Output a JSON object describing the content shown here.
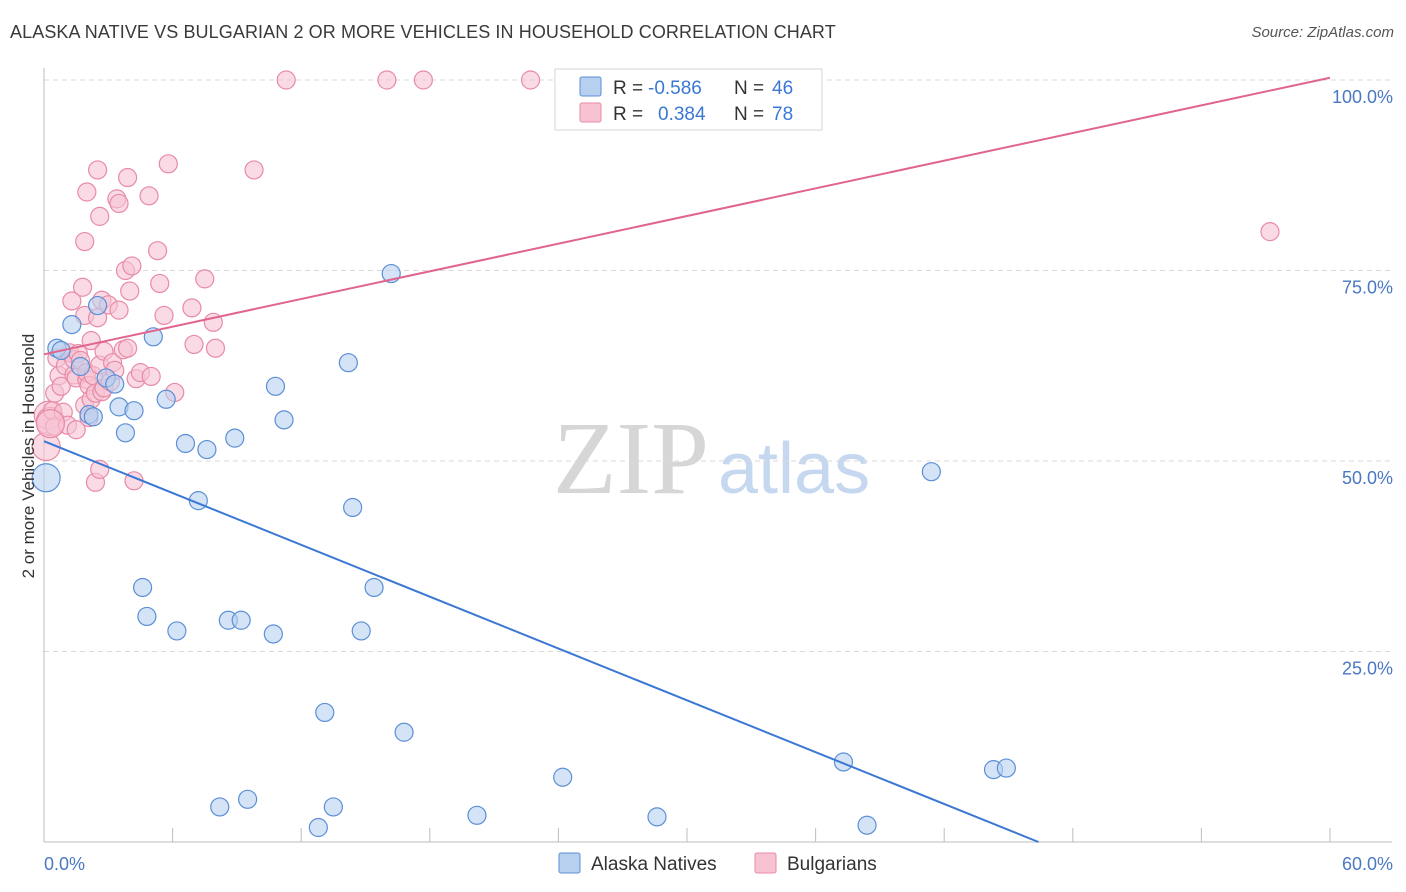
{
  "title": "ALASKA NATIVE VS BULGARIAN 2 OR MORE VEHICLES IN HOUSEHOLD CORRELATION CHART",
  "source": "Source: ZipAtlas.com",
  "watermark": {
    "zip": "ZIP",
    "atlas": "atlas"
  },
  "colors": {
    "blue_fill": "#b8d0f0",
    "blue_stroke": "#5b8fd6",
    "blue_line": "#3a78d4",
    "pink_fill": "#f7c3d3",
    "pink_stroke": "#e88aa6",
    "pink_line": "#e0648e",
    "tick_text": "#4a78c2",
    "grid": "#d8d8d8"
  },
  "legend": {
    "r_label": "R =",
    "n_label": "N =",
    "rows": [
      {
        "series": "Alaska Natives",
        "r": "-0.586",
        "n": "46"
      },
      {
        "series": "Bulgarians",
        "r": "0.384",
        "n": "78"
      }
    ]
  },
  "chart_data": {
    "type": "scatter",
    "title": "ALASKA NATIVE VS BULGARIAN 2 OR MORE VEHICLES IN HOUSEHOLD CORRELATION CHART",
    "xlabel": "",
    "ylabel": "2 or more Vehicles in Household",
    "xlim": [
      0,
      60
    ],
    "ylim": [
      0,
      100
    ],
    "x_tick_labels": {
      "min": "0.0%",
      "max": "60.0%"
    },
    "y_tick_labels": [
      "25.0%",
      "50.0%",
      "75.0%",
      "100.0%"
    ],
    "y_ticks": [
      25,
      50,
      75,
      100
    ],
    "series": [
      {
        "name": "Alaska Natives",
        "color": "blue",
        "points": [
          [
            0.1,
            47.8
          ],
          [
            0.6,
            64.8
          ],
          [
            0.8,
            64.5
          ],
          [
            1.3,
            67.9
          ],
          [
            1.7,
            62.4
          ],
          [
            2.1,
            56.1
          ],
          [
            2.3,
            55.8
          ],
          [
            2.5,
            70.4
          ],
          [
            2.9,
            60.9
          ],
          [
            3.3,
            60.1
          ],
          [
            3.5,
            57.1
          ],
          [
            3.8,
            53.7
          ],
          [
            4.2,
            56.6
          ],
          [
            4.6,
            33.4
          ],
          [
            4.8,
            29.6
          ],
          [
            5.1,
            66.3
          ],
          [
            5.7,
            58.1
          ],
          [
            6.2,
            27.7
          ],
          [
            6.6,
            52.3
          ],
          [
            7.2,
            44.8
          ],
          [
            7.6,
            51.5
          ],
          [
            8.2,
            4.6
          ],
          [
            8.6,
            29.1
          ],
          [
            8.9,
            53.0
          ],
          [
            9.2,
            29.1
          ],
          [
            9.5,
            5.6
          ],
          [
            10.7,
            27.3
          ],
          [
            10.8,
            59.8
          ],
          [
            11.2,
            55.4
          ],
          [
            12.8,
            1.9
          ],
          [
            13.1,
            17.0
          ],
          [
            13.5,
            4.6
          ],
          [
            14.2,
            62.9
          ],
          [
            14.4,
            43.9
          ],
          [
            14.8,
            27.7
          ],
          [
            15.4,
            33.4
          ],
          [
            16.2,
            74.6
          ],
          [
            16.8,
            14.4
          ],
          [
            20.2,
            3.5
          ],
          [
            24.2,
            8.5
          ],
          [
            28.6,
            3.3
          ],
          [
            37.3,
            10.5
          ],
          [
            38.4,
            2.2
          ],
          [
            41.4,
            48.6
          ],
          [
            44.3,
            9.5
          ],
          [
            44.9,
            9.7
          ]
        ],
        "trend": {
          "x": [
            0,
            46.4
          ],
          "y": [
            52.6,
            0
          ]
        }
      },
      {
        "name": "Bulgarians",
        "color": "pink",
        "points": [
          [
            0.1,
            51.9
          ],
          [
            0.2,
            56.0
          ],
          [
            0.3,
            55.2
          ],
          [
            0.4,
            56.6
          ],
          [
            0.5,
            58.9
          ],
          [
            0.5,
            54.5
          ],
          [
            0.6,
            63.5
          ],
          [
            0.7,
            61.2
          ],
          [
            0.8,
            59.8
          ],
          [
            0.9,
            56.4
          ],
          [
            1.0,
            62.5
          ],
          [
            1.1,
            54.7
          ],
          [
            1.2,
            64.2
          ],
          [
            1.3,
            71.0
          ],
          [
            1.4,
            61.3
          ],
          [
            1.4,
            63.3
          ],
          [
            1.5,
            60.9
          ],
          [
            1.5,
            54.1
          ],
          [
            1.6,
            64.1
          ],
          [
            1.7,
            63.2
          ],
          [
            1.8,
            72.8
          ],
          [
            1.9,
            69.1
          ],
          [
            1.9,
            57.3
          ],
          [
            2.0,
            60.7
          ],
          [
            2.0,
            61.6
          ],
          [
            2.1,
            59.9
          ],
          [
            2.1,
            55.7
          ],
          [
            2.2,
            58.1
          ],
          [
            2.2,
            65.8
          ],
          [
            2.3,
            61.2
          ],
          [
            2.4,
            58.9
          ],
          [
            2.5,
            68.8
          ],
          [
            2.6,
            62.6
          ],
          [
            2.7,
            59.1
          ],
          [
            2.8,
            59.6
          ],
          [
            1.9,
            78.8
          ],
          [
            2.0,
            85.3
          ],
          [
            2.4,
            47.2
          ],
          [
            2.5,
            88.2
          ],
          [
            2.6,
            48.9
          ],
          [
            2.6,
            82.1
          ],
          [
            2.7,
            71.1
          ],
          [
            2.8,
            64.4
          ],
          [
            3.0,
            70.5
          ],
          [
            3.1,
            60.4
          ],
          [
            3.2,
            62.9
          ],
          [
            3.3,
            61.9
          ],
          [
            3.4,
            84.4
          ],
          [
            3.5,
            83.8
          ],
          [
            3.5,
            69.8
          ],
          [
            3.7,
            64.6
          ],
          [
            3.8,
            75.0
          ],
          [
            3.9,
            87.2
          ],
          [
            3.9,
            64.8
          ],
          [
            4.0,
            72.3
          ],
          [
            4.1,
            75.6
          ],
          [
            4.2,
            47.4
          ],
          [
            4.3,
            60.8
          ],
          [
            4.5,
            61.6
          ],
          [
            4.9,
            84.8
          ],
          [
            5.0,
            61.1
          ],
          [
            5.3,
            77.6
          ],
          [
            5.4,
            73.3
          ],
          [
            5.6,
            69.1
          ],
          [
            5.8,
            89.0
          ],
          [
            6.1,
            59.0
          ],
          [
            6.9,
            70.1
          ],
          [
            7.0,
            65.3
          ],
          [
            7.5,
            73.9
          ],
          [
            7.9,
            68.2
          ],
          [
            8.0,
            64.8
          ],
          [
            9.8,
            88.2
          ],
          [
            11.3,
            100.0
          ],
          [
            16.0,
            100.0
          ],
          [
            17.7,
            100.0
          ],
          [
            22.7,
            100.0
          ],
          [
            57.2,
            80.1
          ],
          [
            0.3,
            54.9
          ]
        ],
        "trend": {
          "x": [
            0,
            60
          ],
          "y": [
            64.0,
            100.3
          ]
        }
      }
    ]
  }
}
